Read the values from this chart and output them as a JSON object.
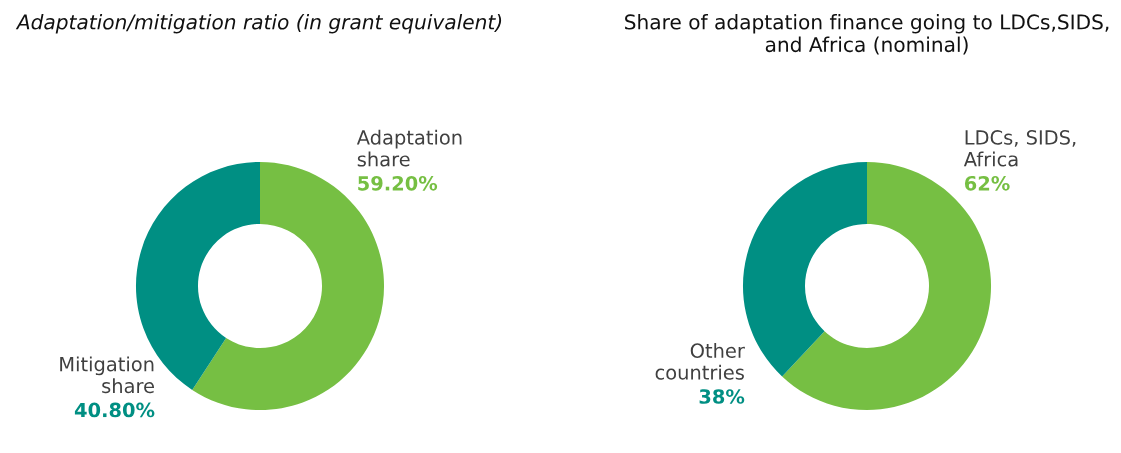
{
  "chart_data": [
    {
      "type": "donut",
      "title": "Adaptation/mitigation ratio (in grant equivalent)",
      "categories": [
        "Adaptation\nshare",
        "Mitigation\nshare"
      ],
      "values": [
        59.2,
        40.8
      ],
      "colors": [
        "#76bf43",
        "#008f83"
      ],
      "value_labels": [
        "59.20%",
        "40.80%"
      ]
    },
    {
      "type": "donut",
      "title": "Share of adaptation finance going to LDCs,SIDS, and Africa (nominal)",
      "categories": [
        "LDCs, SIDS,\nAfrica",
        "Other\ncountries"
      ],
      "values": [
        62,
        38
      ],
      "colors": [
        "#76bf43",
        "#008f83"
      ],
      "value_labels": [
        "62%",
        "38%"
      ]
    }
  ]
}
